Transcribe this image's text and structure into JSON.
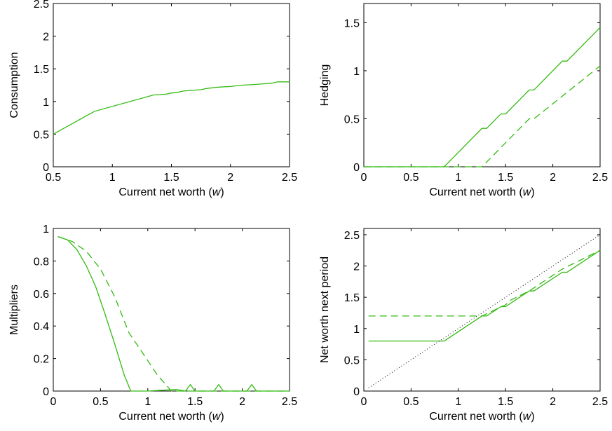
{
  "figure": {
    "background": "#ffffff",
    "line_color": "#33bb11",
    "reference_line_color": "#000000"
  },
  "chart_data": [
    {
      "type": "line",
      "xlabel": "Current net worth (",
      "xlabel_var": "w",
      "xlabel_tail": ")",
      "ylabel": "Consumption",
      "xlim": [
        0.5,
        2.5
      ],
      "ylim": [
        0,
        2.5
      ],
      "xticks": [
        "0.5",
        "1",
        "1.5",
        "2",
        "2.5"
      ],
      "yticks": [
        "0",
        "0.5",
        "1",
        "1.5",
        "2",
        "2.5"
      ],
      "series": [
        {
          "style": "solid",
          "x": [
            0.5,
            0.85,
            1.35,
            1.45,
            1.5,
            1.55,
            1.6,
            1.75,
            1.8,
            1.9,
            2.0,
            2.1,
            2.2,
            2.35,
            2.4,
            2.5
          ],
          "y": [
            0.5,
            0.85,
            1.1,
            1.11,
            1.13,
            1.14,
            1.16,
            1.18,
            1.2,
            1.22,
            1.23,
            1.25,
            1.26,
            1.28,
            1.3,
            1.3
          ]
        }
      ]
    },
    {
      "type": "line",
      "xlabel": "Current net worth (",
      "xlabel_var": "w",
      "xlabel_tail": ")",
      "ylabel": "Hedging",
      "xlim": [
        0,
        2.5
      ],
      "ylim": [
        0,
        1.7
      ],
      "xticks": [
        "0",
        "0.5",
        "1",
        "1.5",
        "2",
        "2.5"
      ],
      "yticks": [
        "0",
        "0.5",
        "1",
        "1.5"
      ],
      "series": [
        {
          "style": "solid",
          "x": [
            0,
            0.85,
            1.25,
            1.3,
            1.45,
            1.5,
            1.75,
            1.8,
            2.1,
            2.15,
            2.5
          ],
          "y": [
            0,
            0,
            0.4,
            0.4,
            0.55,
            0.55,
            0.8,
            0.8,
            1.1,
            1.1,
            1.45
          ]
        },
        {
          "style": "dashed",
          "x": [
            0,
            1.25,
            1.75,
            1.8,
            2.5
          ],
          "y": [
            0,
            0,
            0.5,
            0.5,
            1.05
          ]
        }
      ]
    },
    {
      "type": "line",
      "xlabel": "Current net worth (",
      "xlabel_var": "w",
      "xlabel_tail": ")",
      "ylabel": "Multipliers",
      "xlim": [
        0,
        2.5
      ],
      "ylim": [
        0,
        1
      ],
      "xticks": [
        "0",
        "0.5",
        "1",
        "1.5",
        "2",
        "2.5"
      ],
      "yticks": [
        "0",
        "0.2",
        "0.4",
        "0.6",
        "0.8",
        "1"
      ],
      "series": [
        {
          "style": "solid",
          "x": [
            0.05,
            0.15,
            0.25,
            0.35,
            0.45,
            0.55,
            0.65,
            0.75,
            0.82,
            1.0,
            1.3,
            1.4,
            1.45,
            1.5,
            1.7,
            1.75,
            1.8,
            2.05,
            2.1,
            2.15,
            2.5
          ],
          "y": [
            0.95,
            0.93,
            0.87,
            0.77,
            0.64,
            0.47,
            0.29,
            0.1,
            0,
            0,
            0.01,
            0,
            0.04,
            0,
            0,
            0.04,
            0,
            0,
            0.04,
            0,
            0
          ]
        },
        {
          "style": "dashed",
          "x": [
            0.05,
            0.2,
            0.35,
            0.5,
            0.65,
            0.8,
            0.95,
            1.1,
            1.25,
            1.5,
            2.5
          ],
          "y": [
            0.95,
            0.92,
            0.86,
            0.75,
            0.58,
            0.36,
            0.23,
            0.1,
            0,
            0,
            0
          ]
        }
      ]
    },
    {
      "type": "line",
      "xlabel": "Current net worth (",
      "xlabel_var": "w",
      "xlabel_tail": ")",
      "ylabel": "Net worth next period",
      "xlim": [
        0,
        2.5
      ],
      "ylim": [
        0,
        2.6
      ],
      "xticks": [
        "0",
        "0.5",
        "1",
        "1.5",
        "2",
        "2.5"
      ],
      "yticks": [
        "0",
        "0.5",
        "1",
        "1.5",
        "2",
        "2.5"
      ],
      "series": [
        {
          "style": "solid",
          "x": [
            0.05,
            0.85,
            1.25,
            1.3,
            1.45,
            1.5,
            1.75,
            1.8,
            2.1,
            2.15,
            2.5
          ],
          "y": [
            0.8,
            0.8,
            1.2,
            1.2,
            1.35,
            1.35,
            1.6,
            1.6,
            1.9,
            1.9,
            2.25
          ]
        },
        {
          "style": "dashed",
          "x": [
            0.05,
            1.25,
            1.5,
            1.55,
            1.75,
            1.8,
            2.1,
            2.5
          ],
          "y": [
            1.2,
            1.2,
            1.38,
            1.45,
            1.6,
            1.65,
            1.95,
            2.25
          ]
        },
        {
          "style": "dotted",
          "x": [
            0.05,
            2.5
          ],
          "y": [
            0.05,
            2.5
          ]
        }
      ]
    }
  ]
}
